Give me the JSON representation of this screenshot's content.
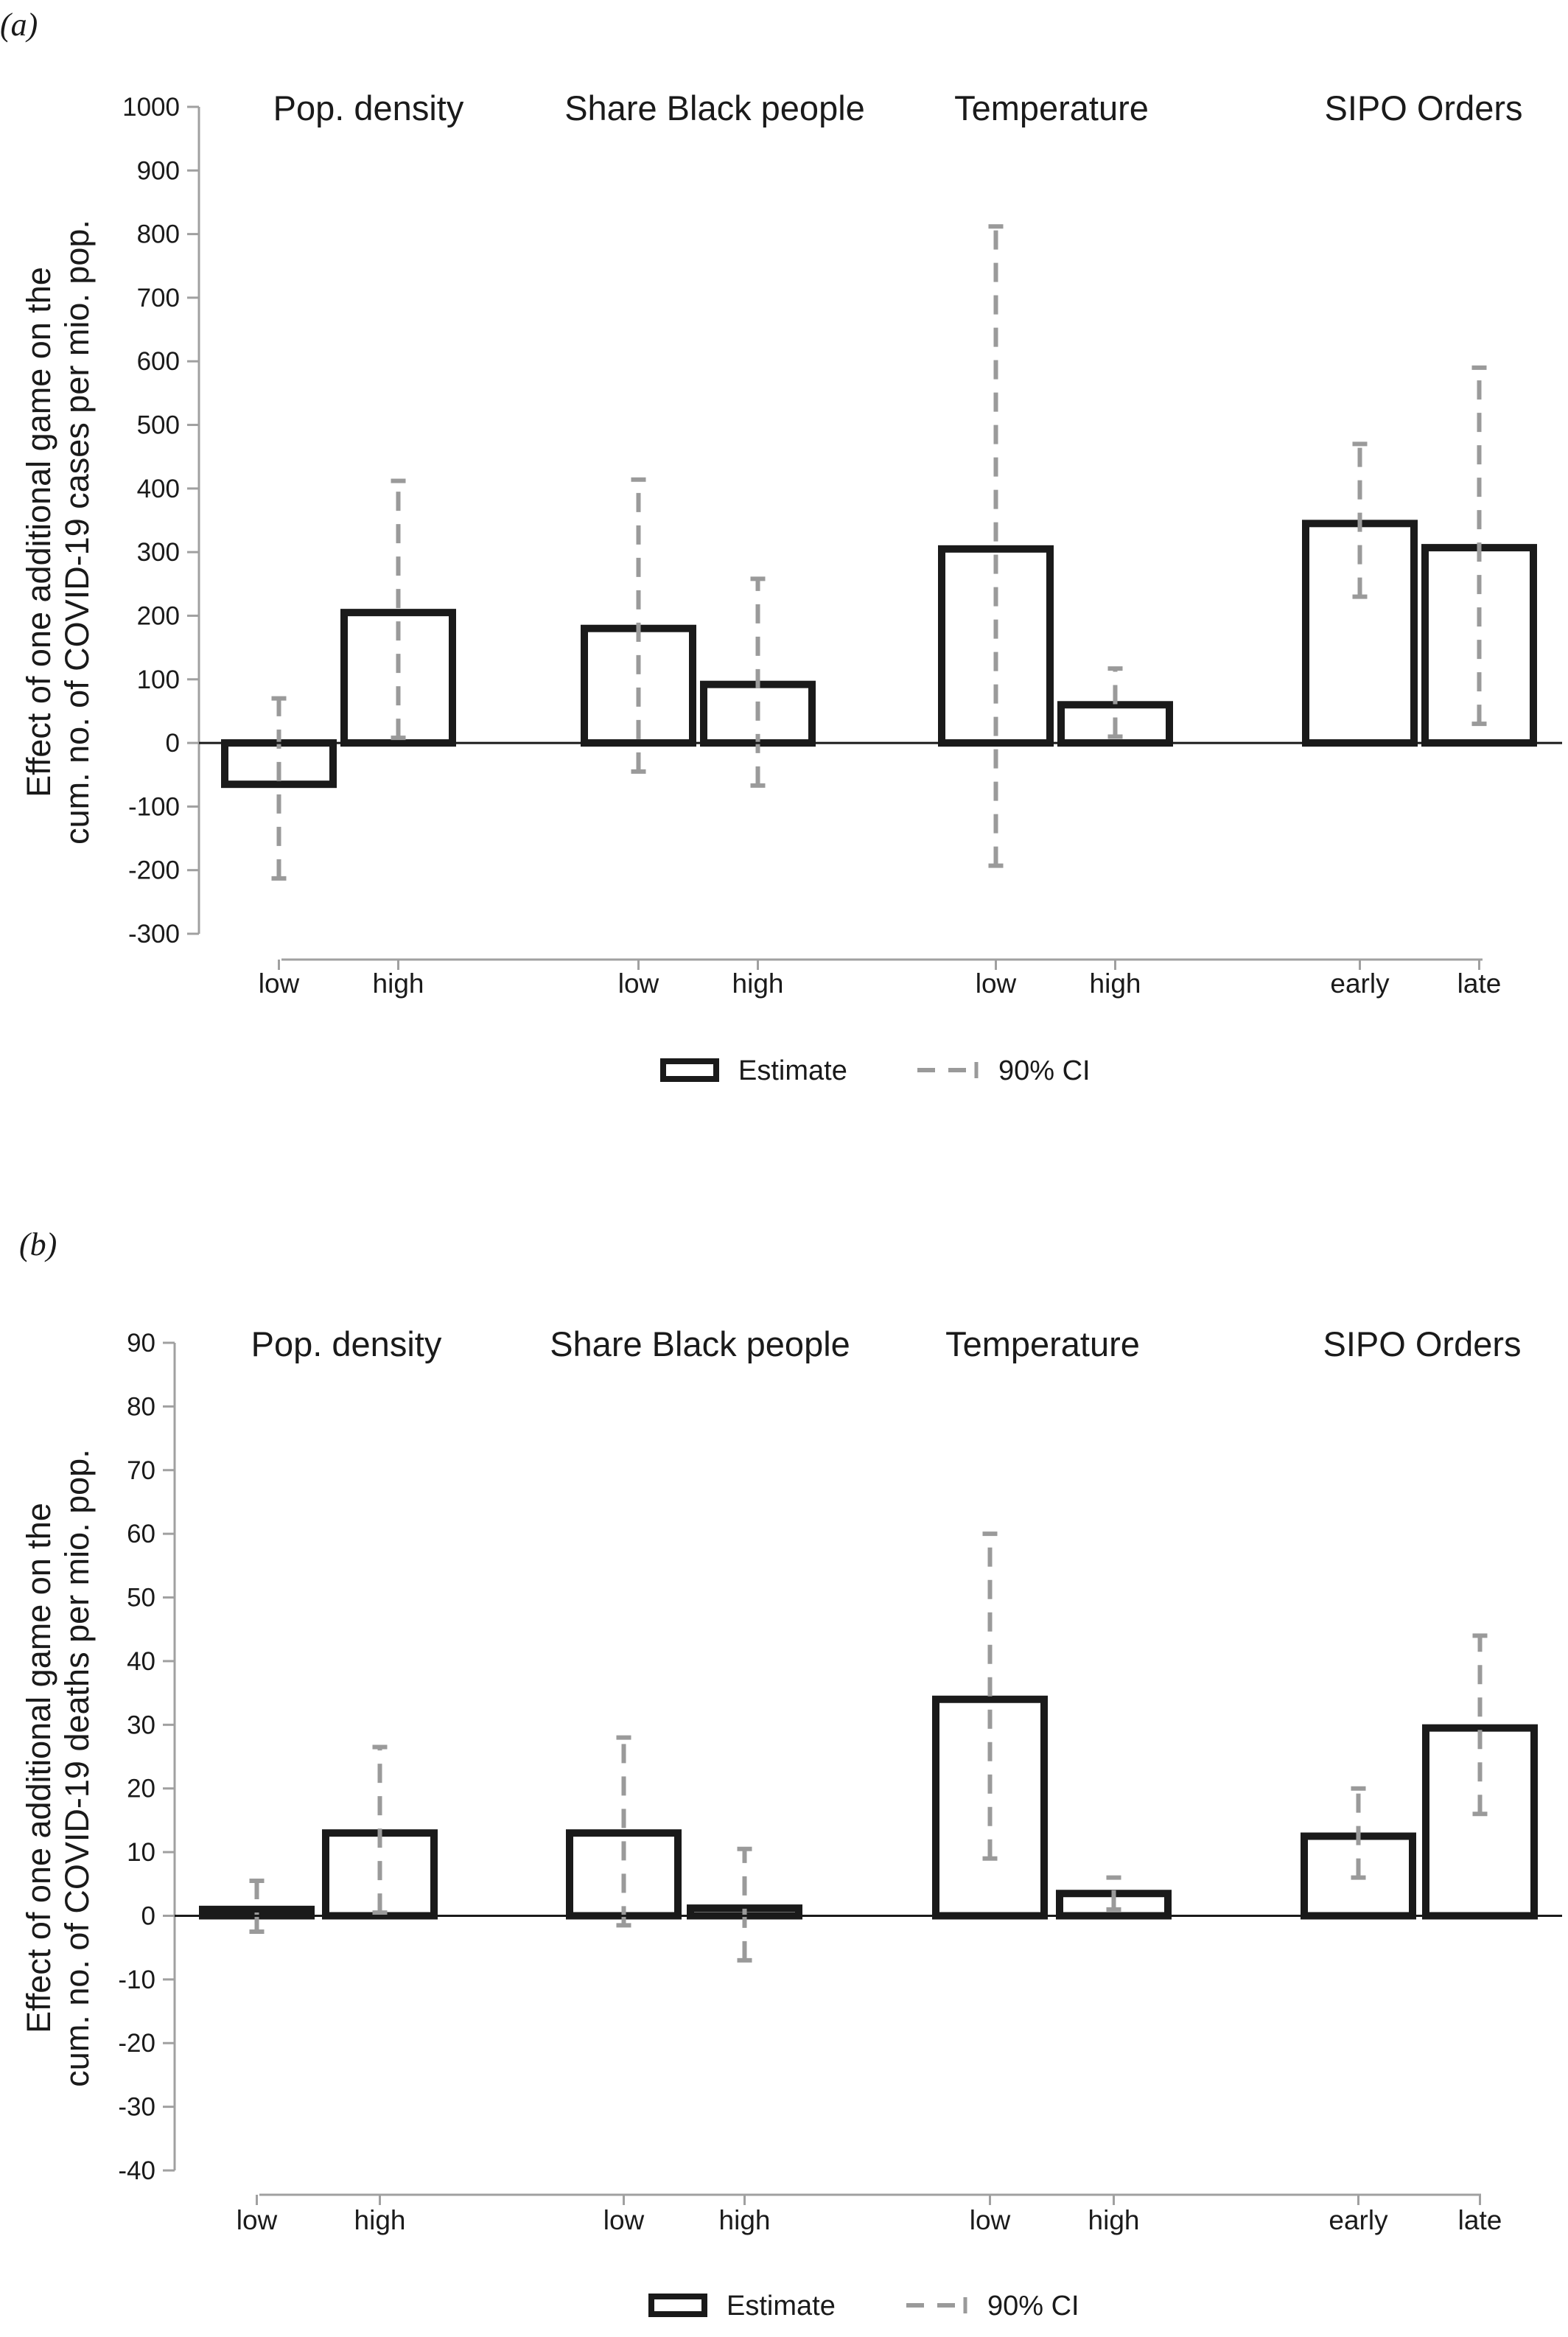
{
  "chart_data": [
    {
      "panel_label": "(a)",
      "type": "bar",
      "ylabel_lines": [
        "Effect of one additional game on the",
        "cum. no. of COVID-19 cases  per mio. pop."
      ],
      "ylim": [
        -300,
        1000
      ],
      "yticks": [
        1000,
        900,
        800,
        700,
        600,
        500,
        400,
        300,
        200,
        100,
        0,
        -100,
        -200,
        -300
      ],
      "groups": [
        {
          "title": "Pop. density",
          "categories": [
            "low",
            "high"
          ],
          "estimate": [
            -65,
            205
          ],
          "ci_low": [
            -213,
            8
          ],
          "ci_high": [
            70,
            412
          ]
        },
        {
          "title": "Share Black people",
          "categories": [
            "low",
            "high"
          ],
          "estimate": [
            180,
            92
          ],
          "ci_low": [
            -45,
            -67
          ],
          "ci_high": [
            414,
            258
          ]
        },
        {
          "title": "Temperature",
          "categories": [
            "low",
            "high"
          ],
          "estimate": [
            305,
            60
          ],
          "ci_low": [
            -193,
            10
          ],
          "ci_high": [
            812,
            117
          ]
        },
        {
          "title": "SIPO Orders",
          "categories": [
            "early",
            "late"
          ],
          "estimate": [
            345,
            307
          ],
          "ci_low": [
            230,
            30
          ],
          "ci_high": [
            470,
            590
          ]
        }
      ],
      "legend": {
        "estimate_label": "Estimate",
        "ci_label": "90% CI",
        "placement": "bottom"
      }
    },
    {
      "panel_label": "(b)",
      "type": "bar",
      "ylabel_lines": [
        "Effect of one additional game on the",
        "cum. no. of COVID-19 deaths  per mio. pop."
      ],
      "ylim": [
        -40,
        90
      ],
      "yticks": [
        90,
        80,
        70,
        60,
        50,
        40,
        30,
        20,
        10,
        0,
        -10,
        -20,
        -30,
        -40
      ],
      "groups": [
        {
          "title": "Pop. density",
          "categories": [
            "low",
            "high"
          ],
          "estimate": [
            1.0,
            13
          ],
          "ci_low": [
            -2.5,
            0.5
          ],
          "ci_high": [
            5.5,
            26.5
          ]
        },
        {
          "title": "Share Black people",
          "categories": [
            "low",
            "high"
          ],
          "estimate": [
            13,
            1.2
          ],
          "ci_low": [
            -1.5,
            -7
          ],
          "ci_high": [
            28,
            10.5
          ]
        },
        {
          "title": "Temperature",
          "categories": [
            "low",
            "high"
          ],
          "estimate": [
            34,
            3.5
          ],
          "ci_low": [
            9,
            1
          ],
          "ci_high": [
            60,
            6
          ]
        },
        {
          "title": "SIPO Orders",
          "categories": [
            "early",
            "late"
          ],
          "estimate": [
            12.5,
            29.5
          ],
          "ci_low": [
            6,
            16
          ],
          "ci_high": [
            20,
            44
          ]
        }
      ],
      "legend": {
        "estimate_label": "Estimate",
        "ci_label": "90% CI",
        "placement": "bottom"
      }
    }
  ]
}
